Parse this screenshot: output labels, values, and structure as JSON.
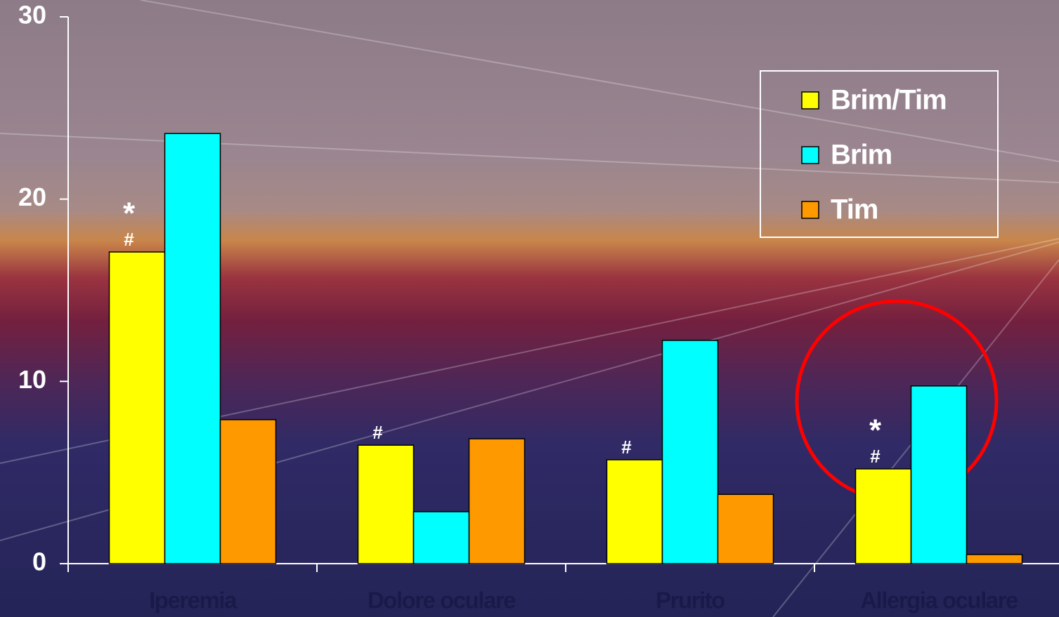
{
  "chart_data": {
    "type": "bar",
    "categories": [
      "Iperemia",
      "Dolore oculare",
      "Prurito",
      "Allergia oculare"
    ],
    "series": [
      {
        "name": "Brim/Tim",
        "color": "#ffff00",
        "values": [
          17.1,
          6.5,
          5.7,
          5.2
        ]
      },
      {
        "name": "Brim",
        "color": "#00ffff",
        "values": [
          23.6,
          2.85,
          12.25,
          9.75
        ]
      },
      {
        "name": "Tim",
        "color": "#ff9900",
        "values": [
          7.9,
          6.85,
          3.8,
          0.5
        ]
      }
    ],
    "annotations": [
      {
        "category": 0,
        "series": 0,
        "text": [
          "*",
          "#"
        ]
      },
      {
        "category": 1,
        "series": 0,
        "text": [
          "#"
        ]
      },
      {
        "category": 2,
        "series": 0,
        "text": [
          "#"
        ]
      },
      {
        "category": 3,
        "series": 0,
        "text": [
          "*",
          "#"
        ]
      }
    ],
    "ylim": [
      0,
      30
    ],
    "yticks": [
      0,
      10,
      20,
      30
    ],
    "grid": false,
    "legend": "top-right"
  }
}
